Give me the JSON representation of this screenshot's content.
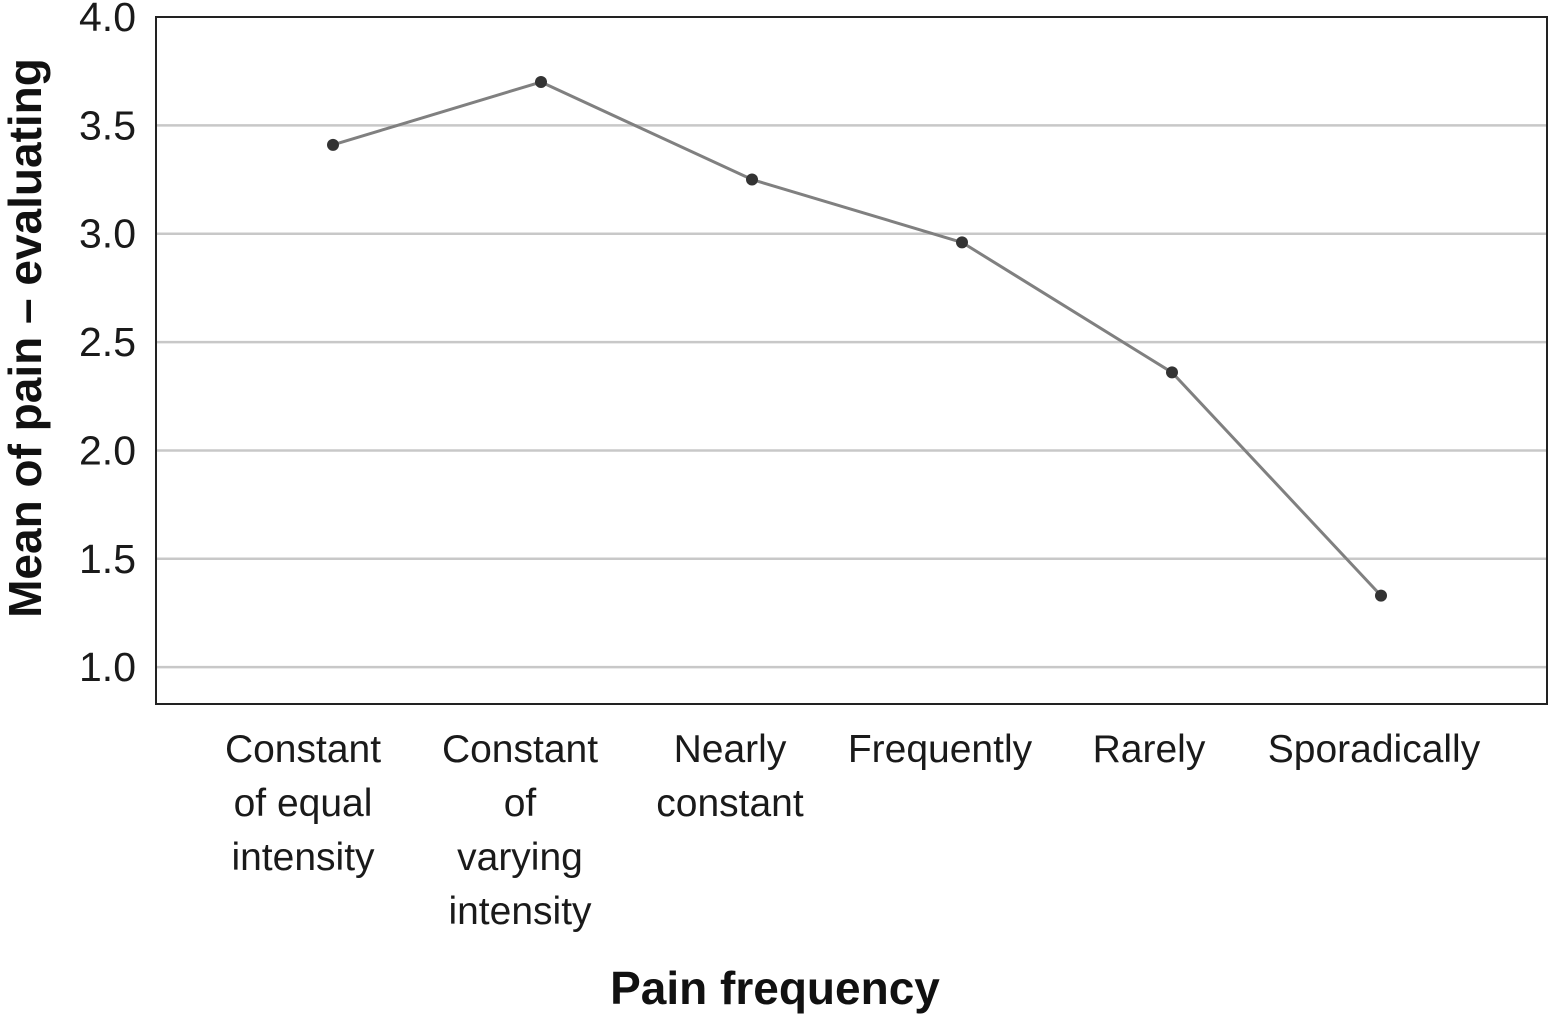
{
  "chart_data": {
    "type": "line",
    "title": "",
    "xlabel": "Pain frequency",
    "ylabel": "Mean of pain – evaluating",
    "categories": [
      [
        "Constant",
        "of equal",
        "intensity"
      ],
      [
        "Constant",
        "of",
        "varying",
        "intensity"
      ],
      [
        "Nearly",
        "constant"
      ],
      [
        "Frequently"
      ],
      [
        "Rarely"
      ],
      [
        "Sporadically"
      ]
    ],
    "series": [
      {
        "values": [
          3.41,
          3.7,
          3.25,
          2.96,
          2.36,
          1.33
        ]
      }
    ],
    "ylim": [
      0.83,
      4.0
    ],
    "yticks": [
      "1.0",
      "1.5",
      "2.0",
      "2.5",
      "3.0",
      "3.5",
      "4.0"
    ],
    "grid": true,
    "legend": "none",
    "colors": {
      "line": "#808080",
      "marker": "#333333",
      "grid": "#c8c8c8",
      "axis": "#222222"
    }
  }
}
